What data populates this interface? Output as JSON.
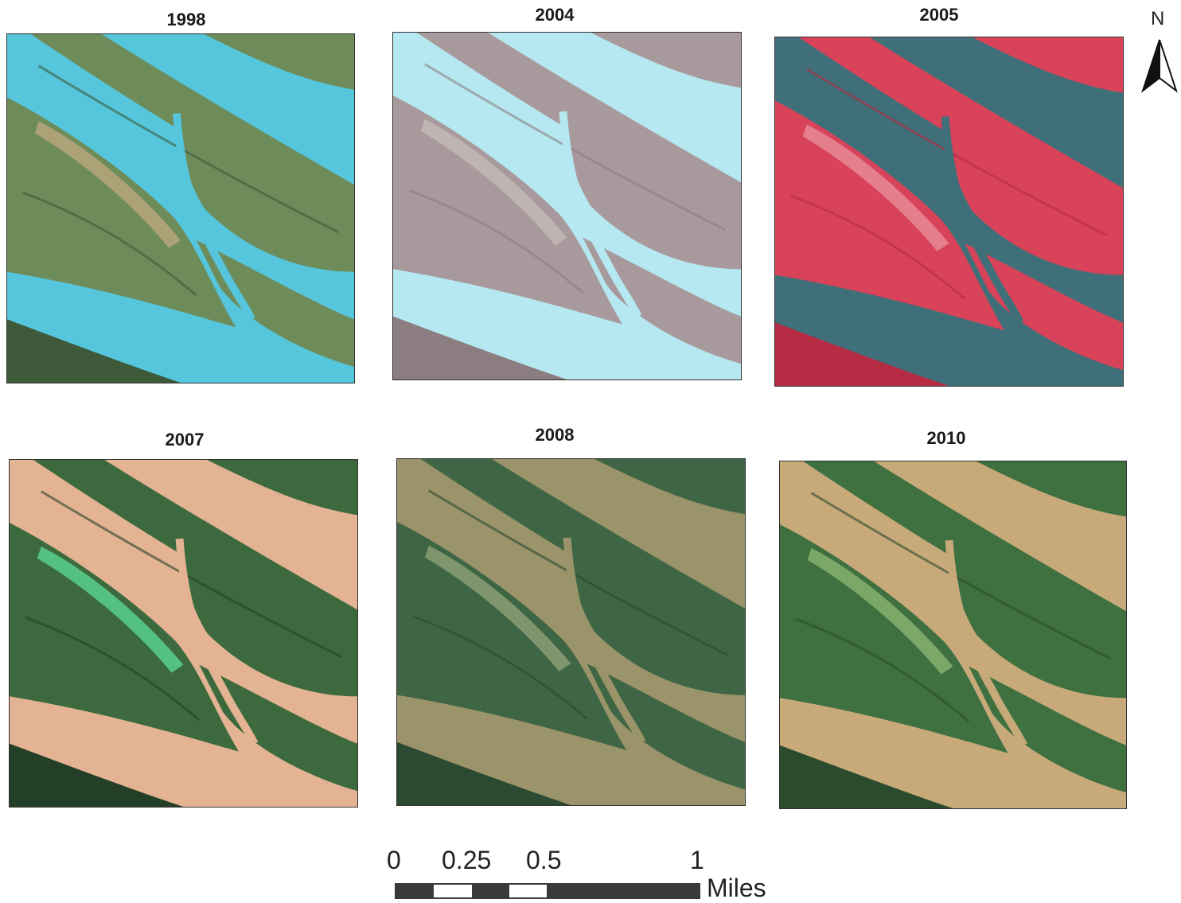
{
  "panels": [
    {
      "year": "1998",
      "water": "#55c6dc",
      "land": "#6e8c5a",
      "bank": "#3e5a3a",
      "sand": "#b9a57c"
    },
    {
      "year": "2004",
      "water": "#b5e8f0",
      "land": "#a89a9c",
      "bank": "#8c7e80",
      "sand": "#c4b8b6"
    },
    {
      "year": "2005",
      "water": "#3f6f78",
      "land": "#d8435a",
      "bank": "#b52c44",
      "sand": "#e88a98"
    },
    {
      "year": "2007",
      "water": "#e3b393",
      "land": "#3c6a3e",
      "bank": "#243f28",
      "sand": "#58d08c"
    },
    {
      "year": "2008",
      "water": "#9b936a",
      "land": "#3e6644",
      "bank": "#2b4a31",
      "sand": "#8a9e74"
    },
    {
      "year": "2010",
      "water": "#c7a97a",
      "land": "#3f7040",
      "bank": "#2a4b2c",
      "sand": "#86b070"
    }
  ],
  "north_arrow": {
    "letter": "N",
    "icon": "north-arrow-icon"
  },
  "scale": {
    "ticks": [
      "0",
      "0.25",
      "0.5",
      "1"
    ],
    "unit": "Miles",
    "colors": {
      "dark": "#3a3a3a",
      "light": "#ffffff"
    }
  }
}
